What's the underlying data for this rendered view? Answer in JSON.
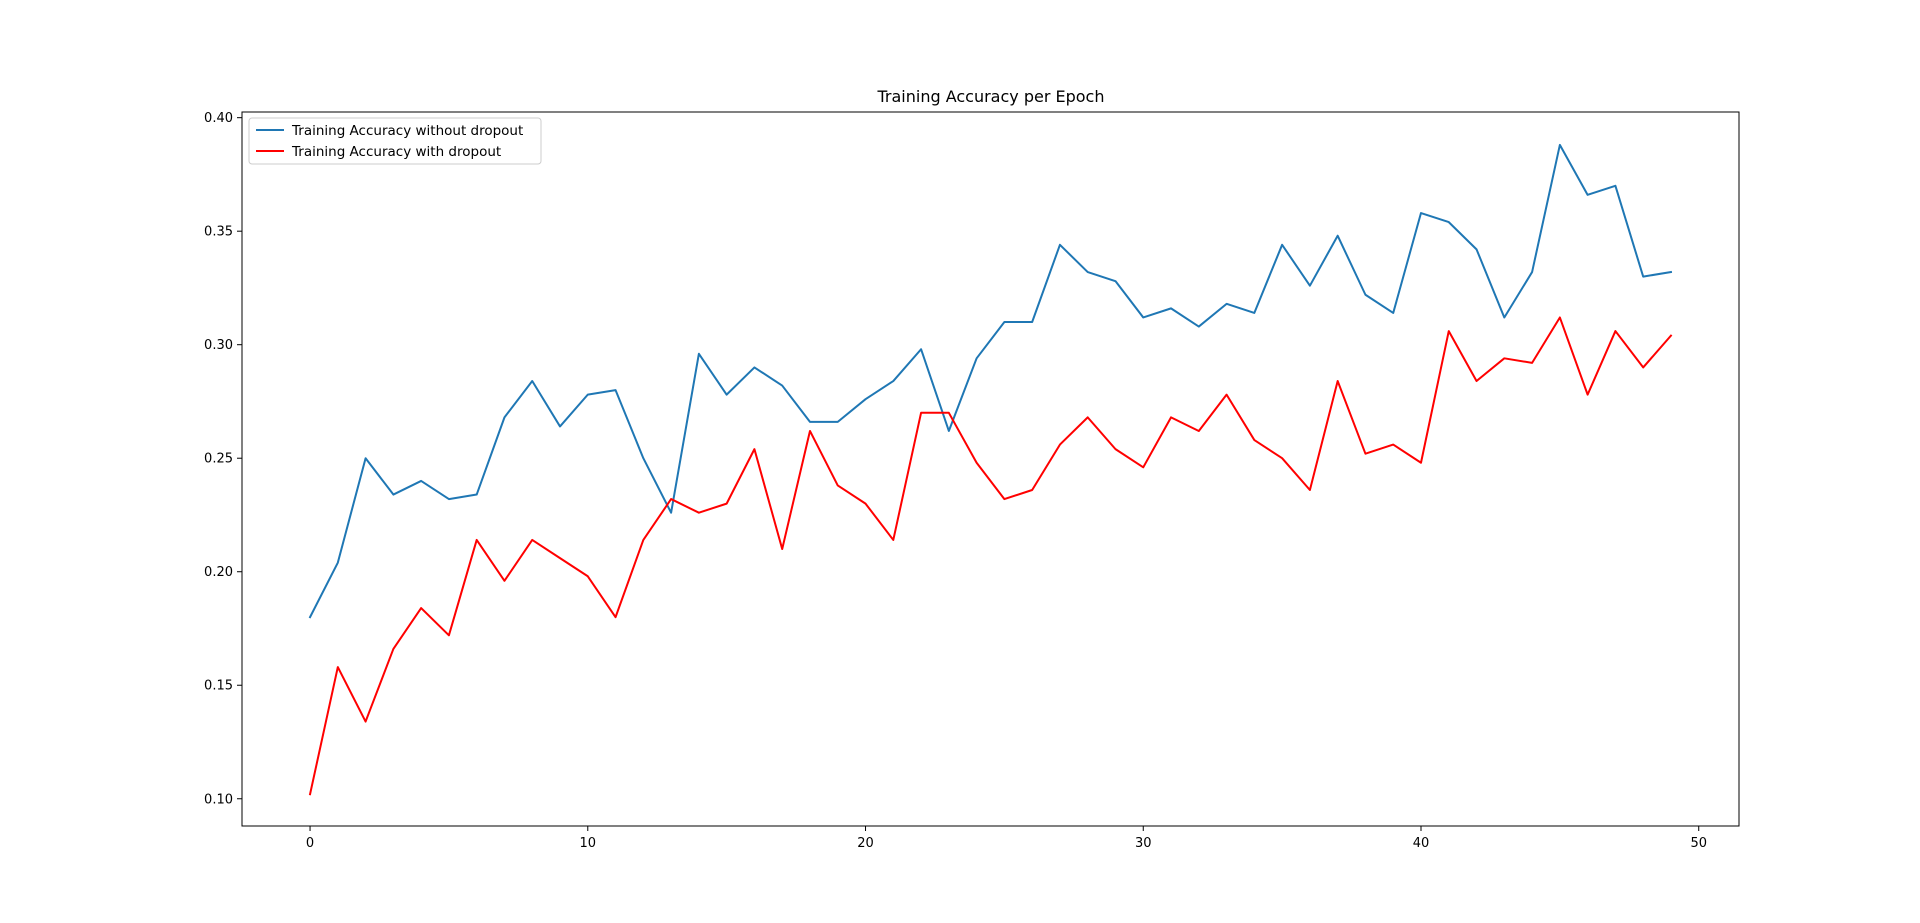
{
  "chart_data": {
    "type": "line",
    "title": "Training Accuracy per Epoch",
    "xlabel": "",
    "ylabel": "",
    "xlim": [
      -2.45,
      51.45
    ],
    "ylim": [
      0.088,
      0.4025
    ],
    "xticks": [
      0,
      10,
      20,
      30,
      40,
      50
    ],
    "yticks": [
      0.1,
      0.15,
      0.2,
      0.25,
      0.3,
      0.35,
      0.4
    ],
    "xtick_labels": [
      "0",
      "10",
      "20",
      "30",
      "40",
      "50"
    ],
    "ytick_labels": [
      "0.10",
      "0.15",
      "0.20",
      "0.25",
      "0.30",
      "0.35",
      "0.40"
    ],
    "grid": false,
    "legend_position": "upper-left",
    "x": [
      0,
      1,
      2,
      3,
      4,
      5,
      6,
      7,
      8,
      9,
      10,
      11,
      12,
      13,
      14,
      15,
      16,
      17,
      18,
      19,
      20,
      21,
      22,
      23,
      24,
      25,
      26,
      27,
      28,
      29,
      30,
      31,
      32,
      33,
      34,
      35,
      36,
      37,
      38,
      39,
      40,
      41,
      42,
      43,
      44,
      45,
      46,
      47,
      48,
      49
    ],
    "series": [
      {
        "name": "Training Accuracy without dropout",
        "color": "#1f77b4",
        "values": [
          0.18,
          0.204,
          0.25,
          0.234,
          0.24,
          0.232,
          0.234,
          0.268,
          0.284,
          0.264,
          0.278,
          0.28,
          0.25,
          0.226,
          0.296,
          0.278,
          0.29,
          0.282,
          0.266,
          0.266,
          0.276,
          0.284,
          0.298,
          0.262,
          0.294,
          0.31,
          0.31,
          0.344,
          0.332,
          0.328,
          0.312,
          0.316,
          0.308,
          0.318,
          0.314,
          0.344,
          0.326,
          0.348,
          0.322,
          0.314,
          0.358,
          0.354,
          0.342,
          0.312,
          0.332,
          0.388,
          0.366,
          0.37,
          0.33,
          0.332
        ]
      },
      {
        "name": "Training Accuracy with dropout",
        "color": "#ff0000",
        "values": [
          0.102,
          0.158,
          0.134,
          0.166,
          0.184,
          0.172,
          0.214,
          0.196,
          0.214,
          0.206,
          0.198,
          0.18,
          0.214,
          0.232,
          0.226,
          0.23,
          0.254,
          0.21,
          0.262,
          0.238,
          0.23,
          0.214,
          0.27,
          0.27,
          0.248,
          0.232,
          0.236,
          0.256,
          0.268,
          0.254,
          0.246,
          0.268,
          0.262,
          0.278,
          0.258,
          0.25,
          0.236,
          0.284,
          0.252,
          0.256,
          0.248,
          0.306,
          0.284,
          0.294,
          0.292,
          0.312,
          0.278,
          0.306,
          0.29,
          0.304
        ]
      }
    ]
  }
}
